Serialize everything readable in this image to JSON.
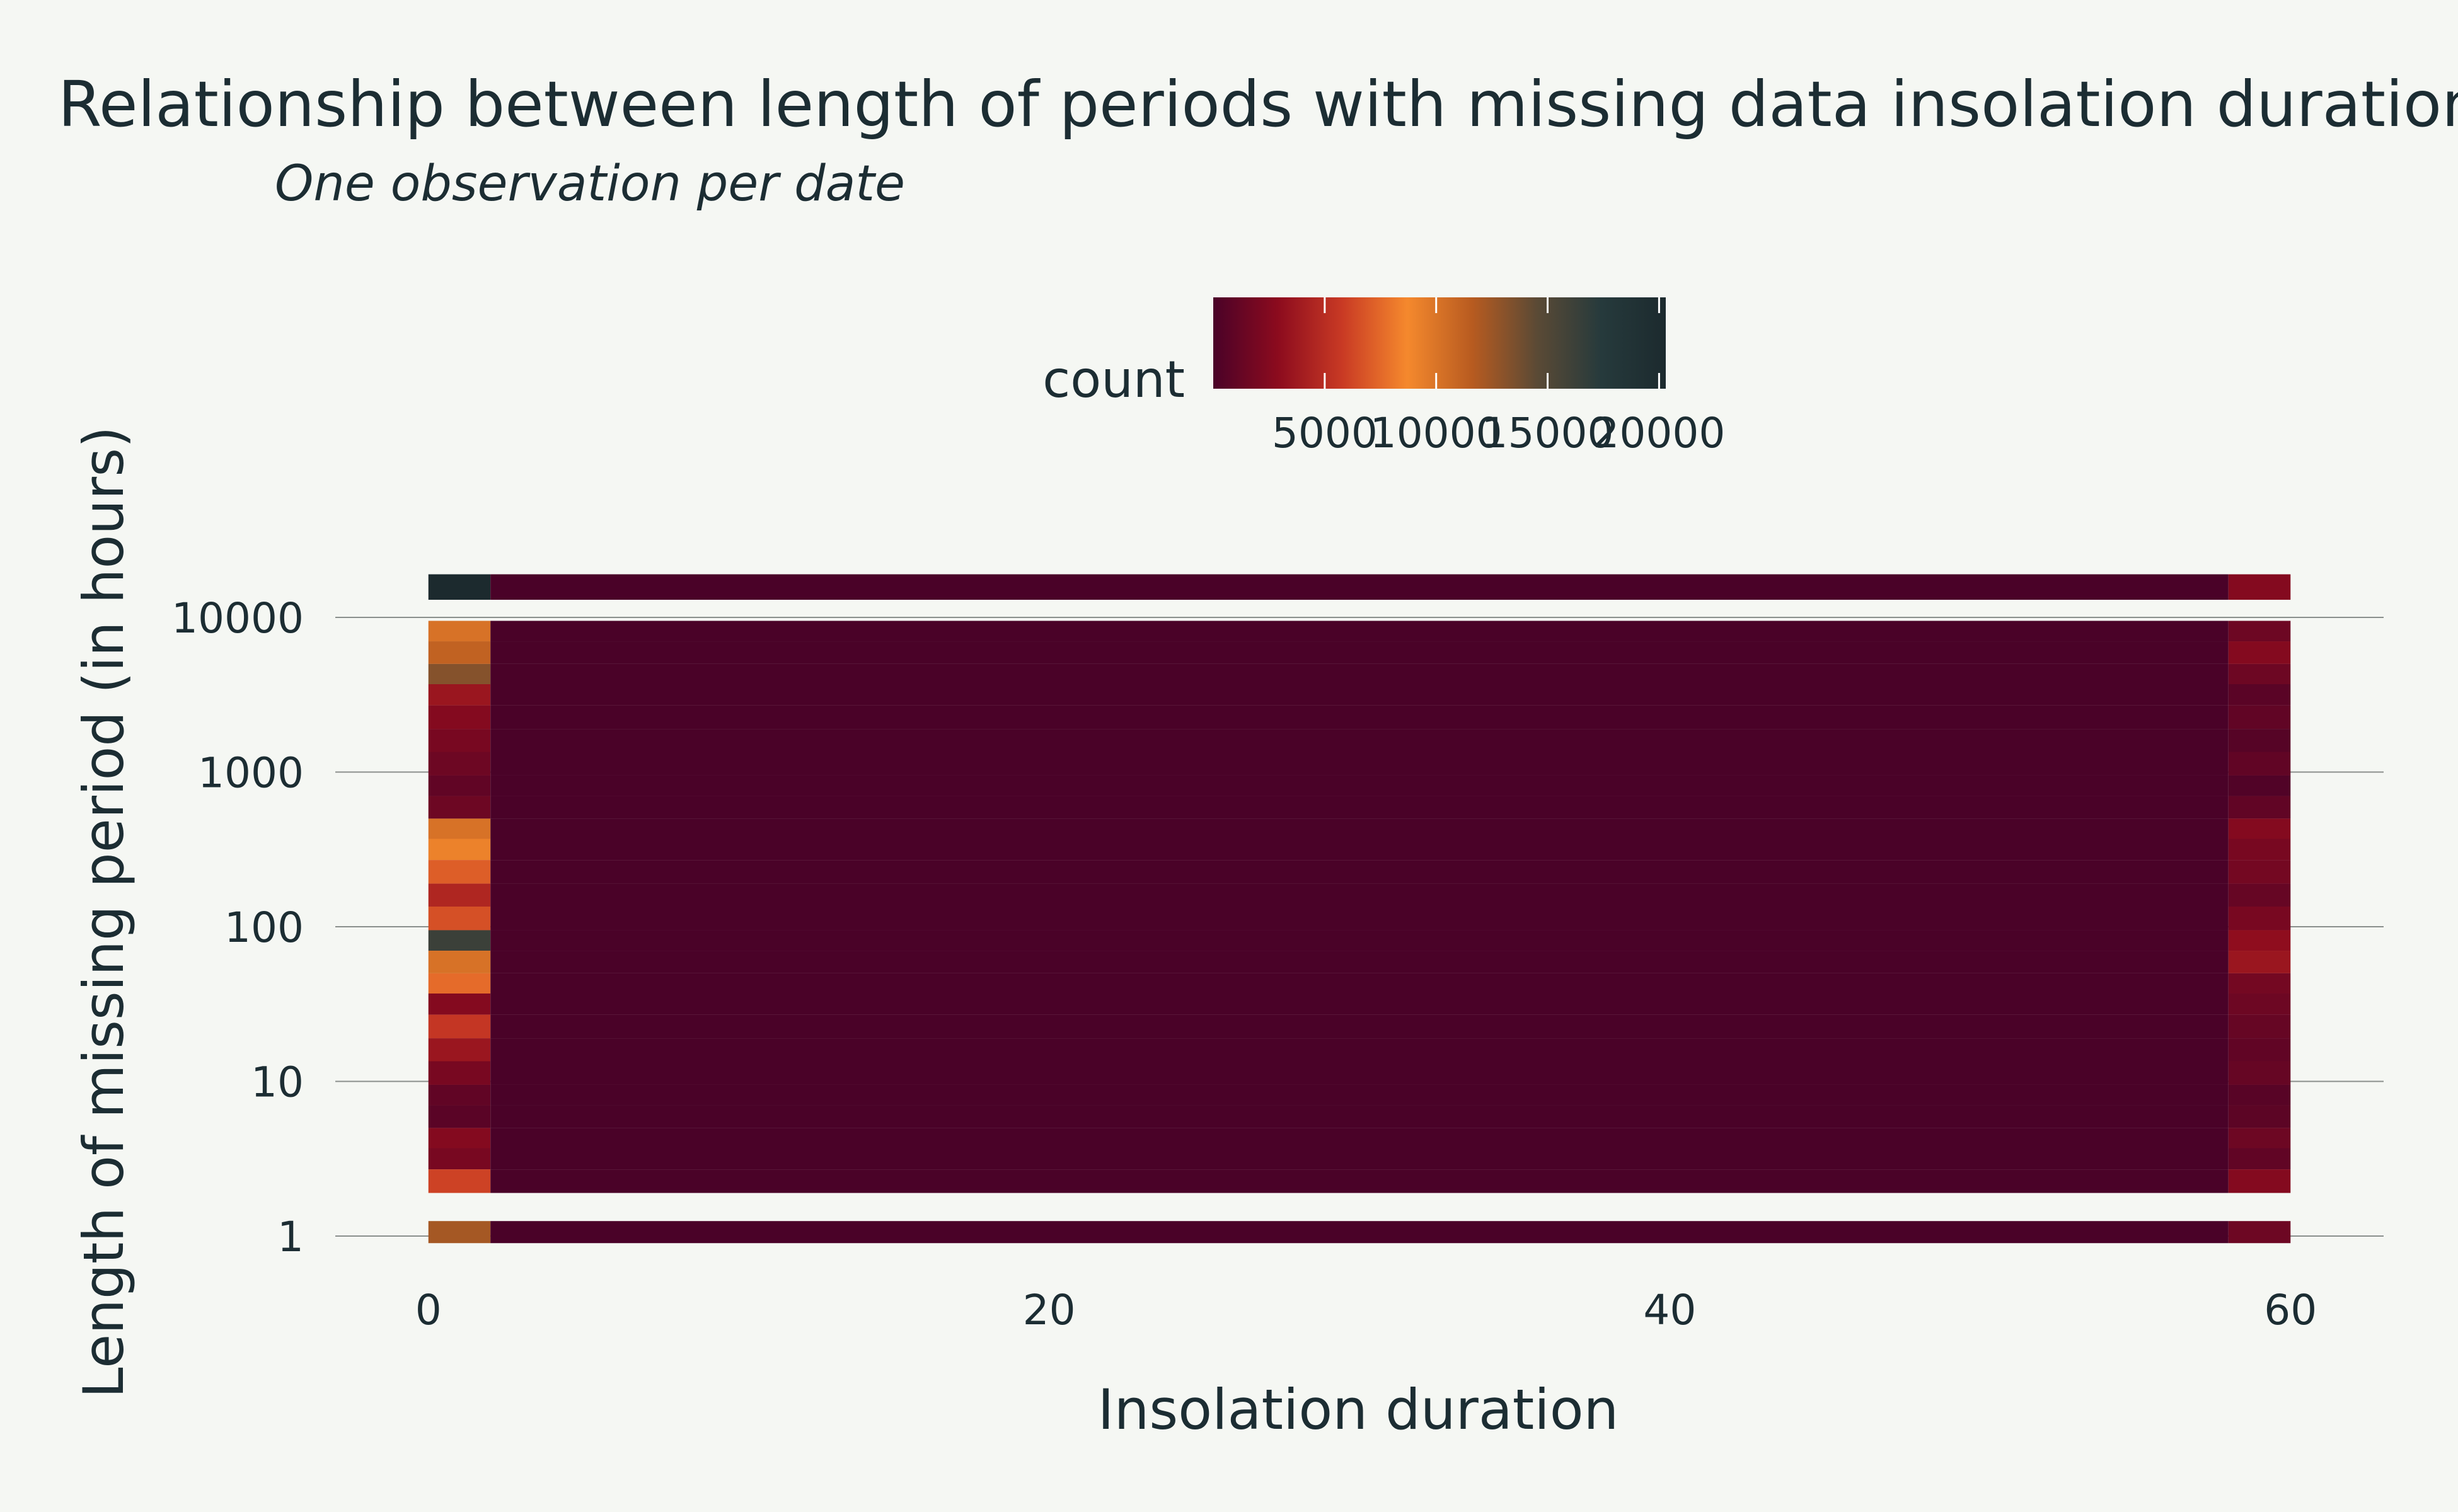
{
  "chart_data": {
    "type": "heatmap",
    "title": "Relationship between length of periods with missing data insolation duration",
    "subtitle": "One observation per date",
    "xlabel": "Insolation duration",
    "ylabel": "Length of missing period (in hours)",
    "x_ticks": [
      0,
      20,
      40,
      60
    ],
    "y_ticks": [
      1,
      10,
      100,
      1000,
      10000
    ],
    "y_tick_labels": [
      "1",
      "10",
      "100",
      "1000",
      "10000"
    ],
    "y_scale": "log",
    "xlim": [
      -3,
      63
    ],
    "colorbar": {
      "title": "count",
      "ticks": [
        5000,
        10000,
        15000,
        20000
      ],
      "tick_labels": [
        "5000",
        "10000",
        "15000",
        "20000"
      ],
      "range": [
        0,
        20000
      ],
      "colorscale": [
        "#4a0228",
        "#8c0b1e",
        "#c93a24",
        "#f5892d",
        "#b85b20",
        "#5b4a35",
        "#263a3c",
        "#1c2a2e"
      ],
      "position": "top"
    },
    "x_bins": [
      [
        0,
        2
      ],
      [
        2,
        58
      ],
      [
        58,
        60
      ]
    ],
    "rows": [
      {
        "y0": 13000,
        "y1": 19000,
        "values": [
          20000,
          0,
          2500
        ]
      },
      {
        "y0": 7000,
        "y1": 9500,
        "values": [
          10000,
          0,
          1500
        ]
      },
      {
        "y0": 5000,
        "y1": 7000,
        "values": [
          11000,
          0,
          2500
        ]
      },
      {
        "y0": 3700,
        "y1": 5000,
        "values": [
          13000,
          0,
          1500
        ]
      },
      {
        "y0": 2700,
        "y1": 3700,
        "values": [
          3500,
          0,
          700
        ]
      },
      {
        "y0": 1900,
        "y1": 2700,
        "values": [
          2500,
          0,
          1000
        ]
      },
      {
        "y0": 1350,
        "y1": 1900,
        "values": [
          2000,
          0,
          500
        ]
      },
      {
        "y0": 950,
        "y1": 1350,
        "values": [
          1500,
          0,
          1000
        ]
      },
      {
        "y0": 700,
        "y1": 950,
        "values": [
          1000,
          0,
          300
        ]
      },
      {
        "y0": 500,
        "y1": 700,
        "values": [
          1500,
          0,
          1000
        ]
      },
      {
        "y0": 370,
        "y1": 500,
        "values": [
          10000,
          0,
          2500
        ]
      },
      {
        "y0": 270,
        "y1": 370,
        "values": [
          9000,
          0,
          2000
        ]
      },
      {
        "y0": 190,
        "y1": 270,
        "values": [
          7000,
          0,
          1800
        ]
      },
      {
        "y0": 135,
        "y1": 190,
        "values": [
          4500,
          0,
          1200
        ]
      },
      {
        "y0": 95,
        "y1": 135,
        "values": [
          6500,
          0,
          2000
        ]
      },
      {
        "y0": 70,
        "y1": 95,
        "values": [
          16000,
          0,
          3000
        ]
      },
      {
        "y0": 50,
        "y1": 70,
        "values": [
          10000,
          0,
          3500
        ]
      },
      {
        "y0": 37,
        "y1": 50,
        "values": [
          7500,
          0,
          1800
        ]
      },
      {
        "y0": 27,
        "y1": 37,
        "values": [
          2500,
          0,
          1500
        ]
      },
      {
        "y0": 19,
        "y1": 27,
        "values": [
          5500,
          0,
          1200
        ]
      },
      {
        "y0": 13.5,
        "y1": 19,
        "values": [
          3500,
          0,
          1000
        ]
      },
      {
        "y0": 9.5,
        "y1": 13.5,
        "values": [
          2000,
          0,
          1200
        ]
      },
      {
        "y0": 7,
        "y1": 9.5,
        "values": [
          1000,
          0,
          600
        ]
      },
      {
        "y0": 5,
        "y1": 7,
        "values": [
          700,
          0,
          800
        ]
      },
      {
        "y0": 3.7,
        "y1": 5,
        "values": [
          2500,
          0,
          1500
        ]
      },
      {
        "y0": 2.7,
        "y1": 3.7,
        "values": [
          2000,
          0,
          1000
        ]
      },
      {
        "y0": 1.9,
        "y1": 2.7,
        "values": [
          6000,
          0,
          2500
        ]
      },
      {
        "y0": 0.9,
        "y1": 1.25,
        "values": [
          12000,
          0,
          1500
        ]
      }
    ]
  }
}
